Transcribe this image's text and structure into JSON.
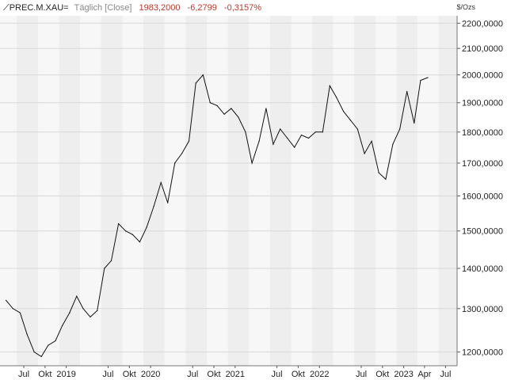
{
  "header": {
    "symbol": "PREC.M.XAU=",
    "period": "Täglich [Close]",
    "last": "1983,2000",
    "change": "-6,2799",
    "change_pct": "-0,3157%",
    "change_color": "#c0392b"
  },
  "chart_data": {
    "type": "line",
    "yunit": "$/Ozs",
    "ylim": [
      1170,
      2230
    ],
    "yscale": "log",
    "yticks": [
      "2200,0000",
      "2100,0000",
      "2000,0000",
      "1900,0000",
      "1800,0000",
      "1700,0000",
      "1600,0000",
      "1500,0000",
      "1400,0000",
      "1300,0000",
      "1200,0000"
    ],
    "ytick_values": [
      2200,
      2100,
      2000,
      1900,
      1800,
      1700,
      1600,
      1500,
      1400,
      1300,
      1200
    ],
    "xticks": [
      "Jul",
      "Okt",
      "2019",
      "Jul",
      "Okt",
      "2020",
      "Jul",
      "Okt",
      "2021",
      "Jul",
      "Okt",
      "2022",
      "Jul",
      "Okt",
      "2023",
      "Apr",
      "Jul"
    ],
    "xtick_dates": [
      "2018-07",
      "2018-10",
      "2019-01",
      "2019-07",
      "2019-10",
      "2020-01",
      "2020-07",
      "2020-10",
      "2021-01",
      "2021-07",
      "2021-10",
      "2022-01",
      "2022-07",
      "2022-10",
      "2023-01",
      "2023-04",
      "2023-07"
    ],
    "grid": true,
    "series": [
      {
        "color": "#111111",
        "x": [
          "2018-04",
          "2018-05",
          "2018-06",
          "2018-07",
          "2018-08",
          "2018-09",
          "2018-10",
          "2018-11",
          "2018-12",
          "2019-01",
          "2019-02",
          "2019-03",
          "2019-04",
          "2019-05",
          "2019-06",
          "2019-07",
          "2019-08",
          "2019-09",
          "2019-10",
          "2019-11",
          "2019-12",
          "2020-01",
          "2020-02",
          "2020-03",
          "2020-04",
          "2020-05",
          "2020-06",
          "2020-07",
          "2020-08",
          "2020-09",
          "2020-10",
          "2020-11",
          "2020-12",
          "2021-01",
          "2021-02",
          "2021-03",
          "2021-04",
          "2021-05",
          "2021-06",
          "2021-07",
          "2021-08",
          "2021-09",
          "2021-10",
          "2021-11",
          "2021-12",
          "2022-01",
          "2022-02",
          "2022-03",
          "2022-04",
          "2022-05",
          "2022-06",
          "2022-07",
          "2022-08",
          "2022-09",
          "2022-10",
          "2022-11",
          "2022-12",
          "2023-01",
          "2023-02",
          "2023-03",
          "2023-04"
        ],
        "values": [
          1320,
          1300,
          1290,
          1240,
          1200,
          1190,
          1215,
          1225,
          1260,
          1290,
          1330,
          1300,
          1280,
          1295,
          1400,
          1420,
          1520,
          1500,
          1490,
          1470,
          1510,
          1570,
          1640,
          1580,
          1700,
          1730,
          1770,
          1970,
          2000,
          1900,
          1890,
          1860,
          1880,
          1850,
          1800,
          1700,
          1770,
          1880,
          1760,
          1810,
          1780,
          1750,
          1790,
          1780,
          1800,
          1800,
          1960,
          1920,
          1870,
          1840,
          1810,
          1730,
          1770,
          1670,
          1650,
          1760,
          1810,
          1940,
          1830,
          1980,
          1990
        ]
      }
    ]
  }
}
